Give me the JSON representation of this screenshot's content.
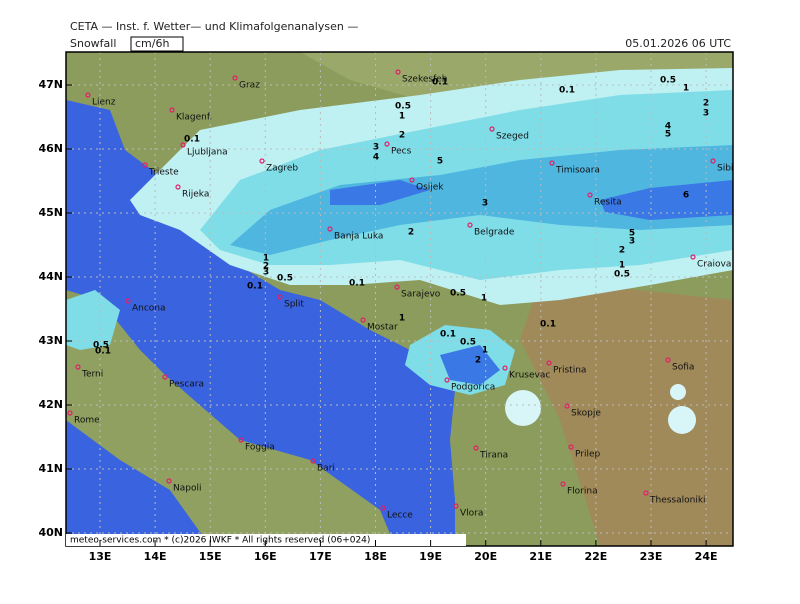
{
  "header": {
    "title": "CETA — Inst. f. Wetter— und Klimafolgenanalysen —",
    "field": "Snowfall",
    "unit": "cm/6h",
    "date": "05.01.2026 06 UTC"
  },
  "axes": {
    "lat": [
      {
        "value": 47,
        "label": "47N"
      },
      {
        "value": 46,
        "label": "46N"
      },
      {
        "value": 45,
        "label": "45N"
      },
      {
        "value": 44,
        "label": "44N"
      },
      {
        "value": 43,
        "label": "43N"
      },
      {
        "value": 42,
        "label": "42N"
      },
      {
        "value": 41,
        "label": "41N"
      },
      {
        "value": 40,
        "label": "40N"
      }
    ],
    "lon": [
      {
        "value": 13,
        "label": "13E"
      },
      {
        "value": 14,
        "label": "14E"
      },
      {
        "value": 15,
        "label": "15E"
      },
      {
        "value": 16,
        "label": "16E"
      },
      {
        "value": 17,
        "label": "17E"
      },
      {
        "value": 18,
        "label": "18E"
      },
      {
        "value": 19,
        "label": "19E"
      },
      {
        "value": 20,
        "label": "20E"
      },
      {
        "value": 21,
        "label": "21E"
      },
      {
        "value": 22,
        "label": "22E"
      },
      {
        "value": 23,
        "label": "23E"
      },
      {
        "value": 24,
        "label": "24E"
      }
    ]
  },
  "cities": [
    "Lienz",
    "Graz",
    "Szekesfeh",
    "Klagenf.",
    "Ljubljana",
    "Trieste",
    "Rijeka",
    "Zagreb",
    "Pecs",
    "Szeged",
    "Timisoara",
    "Sibiu",
    "Osijek",
    "Resita",
    "Banja Luka",
    "Belgrade",
    "Craiova",
    "Sarajevo",
    "Split",
    "Mostar",
    "Ancona",
    "Terni",
    "Pescara",
    "Rome",
    "Podgorica",
    "Krusevac",
    "Pristina",
    "Sofia",
    "Skopje",
    "Tirana",
    "Prilep",
    "Foggia",
    "Bari",
    "Napoli",
    "Florina",
    "Thessaloniki",
    "Lecce",
    "Vlora"
  ],
  "contour_labels": [
    0.1,
    0.5,
    1,
    2,
    3,
    4,
    5,
    0.1,
    0.5,
    1,
    2,
    3,
    4,
    5,
    3,
    6,
    2,
    5,
    3,
    2,
    1,
    0.5,
    1,
    2,
    3,
    0.5,
    0.1,
    0.1,
    0.5,
    1,
    0.1,
    1,
    0.1,
    0.5,
    1,
    2,
    0.1,
    0.5,
    0.1
  ],
  "footer": "meteo-services.com * (c)2026 IWKF * All rights reserved (06+024)"
}
